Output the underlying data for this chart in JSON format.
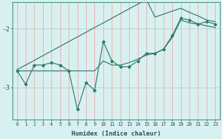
{
  "xlabel": "Humidex (Indice chaleur)",
  "x": [
    0,
    1,
    2,
    3,
    4,
    5,
    6,
    7,
    8,
    9,
    10,
    11,
    12,
    13,
    14,
    15,
    16,
    17,
    18,
    19,
    20,
    21,
    22,
    23
  ],
  "line_jagged": [
    -2.72,
    -2.95,
    -2.62,
    -2.62,
    -2.58,
    -2.62,
    -2.72,
    -3.38,
    -2.92,
    -3.05,
    -2.22,
    -2.55,
    -2.65,
    -2.65,
    -2.55,
    -2.42,
    -2.42,
    -2.35,
    -2.12,
    -1.82,
    -1.85,
    -1.92,
    -1.88,
    -1.92
  ],
  "line_upper": [
    -2.7,
    -2.62,
    -2.54,
    -2.46,
    -2.38,
    -2.3,
    -2.22,
    -2.14,
    -2.06,
    -1.98,
    -1.9,
    -1.82,
    -1.74,
    -1.66,
    -1.58,
    -1.5,
    -1.8,
    -1.75,
    -1.7,
    -1.65,
    -1.72,
    -1.78,
    -1.85,
    -1.88
  ],
  "line_lower": [
    -2.72,
    -2.72,
    -2.72,
    -2.72,
    -2.72,
    -2.72,
    -2.72,
    -2.72,
    -2.72,
    -2.72,
    -2.55,
    -2.62,
    -2.62,
    -2.58,
    -2.52,
    -2.45,
    -2.42,
    -2.35,
    -2.15,
    -1.85,
    -1.9,
    -1.92,
    -1.95,
    -1.98
  ],
  "line_color": "#2e7d6e",
  "bg_color": "#d8f0f0",
  "grid_h_color": "#b8cccc",
  "grid_v_color": "#f0a8a8",
  "ylim": [
    -3.55,
    -1.55
  ],
  "yticks": [
    -3.0,
    -2.0
  ],
  "xlim": [
    -0.5,
    23.5
  ]
}
